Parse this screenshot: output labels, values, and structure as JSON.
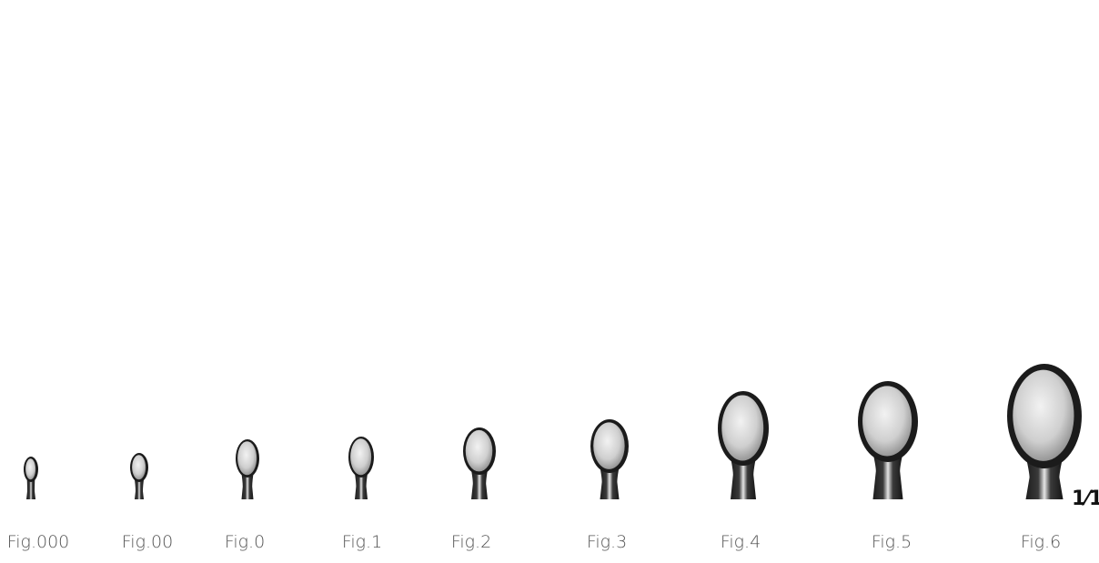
{
  "figures": [
    {
      "label": "Fig.000"
    },
    {
      "label": "Fig.00"
    },
    {
      "label": "Fig.0"
    },
    {
      "label": "Fig.1"
    },
    {
      "label": "Fig.2"
    },
    {
      "label": "Fig.3"
    },
    {
      "label": "Fig.4"
    },
    {
      "label": "Fig.5"
    },
    {
      "label": "Fig.6"
    }
  ],
  "scale_label": "1⁄1"
}
